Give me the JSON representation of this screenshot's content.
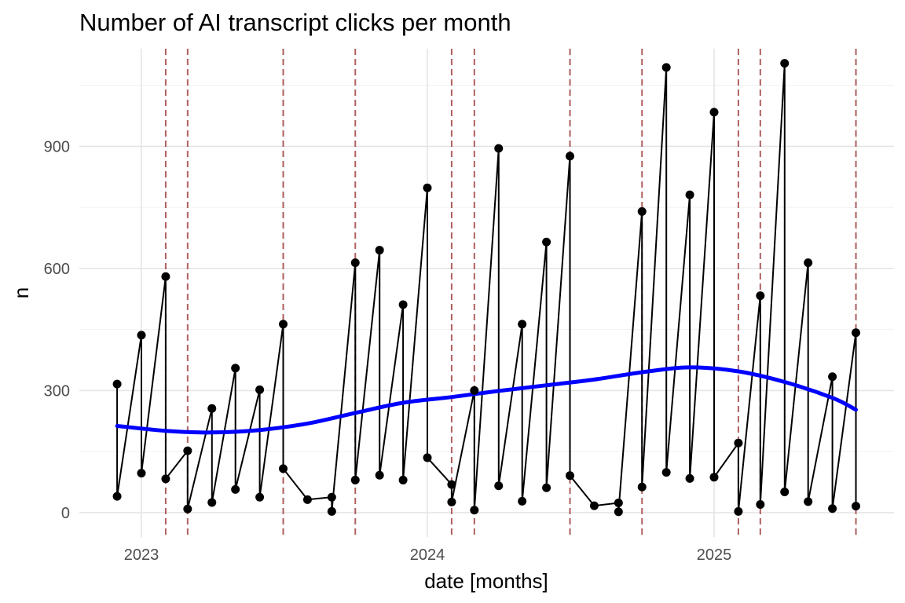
{
  "chart_data": {
    "type": "line",
    "title": "Number of AI transcript clicks per month",
    "xlabel": "date [months]",
    "ylabel": "n",
    "x_ticks": [
      "2023",
      "2024",
      "2025"
    ],
    "y_ticks": [
      0,
      300,
      600,
      900
    ],
    "ylim": [
      -60,
      1140
    ],
    "grid": true,
    "legend": "none",
    "series": [
      {
        "kind": "points-and-line",
        "color": "#000000",
        "points": [
          {
            "x": "2022-12-01",
            "y": 316
          },
          {
            "x": "2022-12-01",
            "y": 40
          },
          {
            "x": "2023-01-01",
            "y": 436
          },
          {
            "x": "2023-01-01",
            "y": 97
          },
          {
            "x": "2023-02-01",
            "y": 580
          },
          {
            "x": "2023-02-01",
            "y": 83
          },
          {
            "x": "2023-03-01",
            "y": 152
          },
          {
            "x": "2023-03-01",
            "y": 9
          },
          {
            "x": "2023-04-01",
            "y": 256
          },
          {
            "x": "2023-04-01",
            "y": 25
          },
          {
            "x": "2023-05-01",
            "y": 355
          },
          {
            "x": "2023-05-01",
            "y": 57
          },
          {
            "x": "2023-06-01",
            "y": 302
          },
          {
            "x": "2023-06-01",
            "y": 38
          },
          {
            "x": "2023-07-01",
            "y": 463
          },
          {
            "x": "2023-07-01",
            "y": 108
          },
          {
            "x": "2023-08-01",
            "y": 32
          },
          {
            "x": "2023-09-01",
            "y": 38
          },
          {
            "x": "2023-09-01",
            "y": 3
          },
          {
            "x": "2023-10-01",
            "y": 614
          },
          {
            "x": "2023-10-01",
            "y": 80
          },
          {
            "x": "2023-11-01",
            "y": 645
          },
          {
            "x": "2023-11-01",
            "y": 92
          },
          {
            "x": "2023-12-01",
            "y": 511
          },
          {
            "x": "2023-12-01",
            "y": 80
          },
          {
            "x": "2024-01-01",
            "y": 798
          },
          {
            "x": "2024-01-01",
            "y": 135
          },
          {
            "x": "2024-02-01",
            "y": 69
          },
          {
            "x": "2024-02-01",
            "y": 26
          },
          {
            "x": "2024-03-01",
            "y": 300
          },
          {
            "x": "2024-03-01",
            "y": 6
          },
          {
            "x": "2024-04-01",
            "y": 895
          },
          {
            "x": "2024-04-01",
            "y": 66
          },
          {
            "x": "2024-05-01",
            "y": 463
          },
          {
            "x": "2024-05-01",
            "y": 28
          },
          {
            "x": "2024-06-01",
            "y": 665
          },
          {
            "x": "2024-06-01",
            "y": 61
          },
          {
            "x": "2024-07-01",
            "y": 876
          },
          {
            "x": "2024-07-01",
            "y": 91
          },
          {
            "x": "2024-08-01",
            "y": 17
          },
          {
            "x": "2024-09-01",
            "y": 24
          },
          {
            "x": "2024-09-01",
            "y": 2
          },
          {
            "x": "2024-10-01",
            "y": 740
          },
          {
            "x": "2024-10-01",
            "y": 63
          },
          {
            "x": "2024-11-01",
            "y": 1094
          },
          {
            "x": "2024-11-01",
            "y": 99
          },
          {
            "x": "2024-12-01",
            "y": 781
          },
          {
            "x": "2024-12-01",
            "y": 84
          },
          {
            "x": "2025-01-01",
            "y": 984
          },
          {
            "x": "2025-01-01",
            "y": 87
          },
          {
            "x": "2025-02-01",
            "y": 171
          },
          {
            "x": "2025-02-01",
            "y": 3
          },
          {
            "x": "2025-03-01",
            "y": 533
          },
          {
            "x": "2025-03-01",
            "y": 20
          },
          {
            "x": "2025-04-01",
            "y": 1104
          },
          {
            "x": "2025-04-01",
            "y": 51
          },
          {
            "x": "2025-05-01",
            "y": 614
          },
          {
            "x": "2025-05-01",
            "y": 27
          },
          {
            "x": "2025-06-01",
            "y": 334
          },
          {
            "x": "2025-06-01",
            "y": 10
          },
          {
            "x": "2025-07-01",
            "y": 442
          },
          {
            "x": "2025-07-01",
            "y": 16
          }
        ]
      },
      {
        "kind": "smooth-trend",
        "color": "#0000ff",
        "points": [
          {
            "x": "2022-12-01",
            "y": 213
          },
          {
            "x": "2023-02-01",
            "y": 201
          },
          {
            "x": "2023-04-01",
            "y": 197
          },
          {
            "x": "2023-06-01",
            "y": 203
          },
          {
            "x": "2023-08-01",
            "y": 219
          },
          {
            "x": "2023-10-01",
            "y": 245
          },
          {
            "x": "2023-12-01",
            "y": 270
          },
          {
            "x": "2024-02-01",
            "y": 284
          },
          {
            "x": "2024-04-01",
            "y": 299
          },
          {
            "x": "2024-06-01",
            "y": 313
          },
          {
            "x": "2024-08-01",
            "y": 327
          },
          {
            "x": "2024-10-01",
            "y": 345
          },
          {
            "x": "2024-12-01",
            "y": 357
          },
          {
            "x": "2025-02-01",
            "y": 347
          },
          {
            "x": "2025-04-01",
            "y": 321
          },
          {
            "x": "2025-06-01",
            "y": 282
          },
          {
            "x": "2025-07-01",
            "y": 253
          }
        ]
      }
    ],
    "vlines": {
      "color": "#b06060",
      "style": "dashed",
      "dates": [
        "2023-02-01",
        "2023-03-01",
        "2023-07-01",
        "2023-10-01",
        "2024-02-01",
        "2024-03-01",
        "2024-07-01",
        "2024-10-01",
        "2025-02-01",
        "2025-03-01",
        "2025-07-01"
      ]
    }
  }
}
